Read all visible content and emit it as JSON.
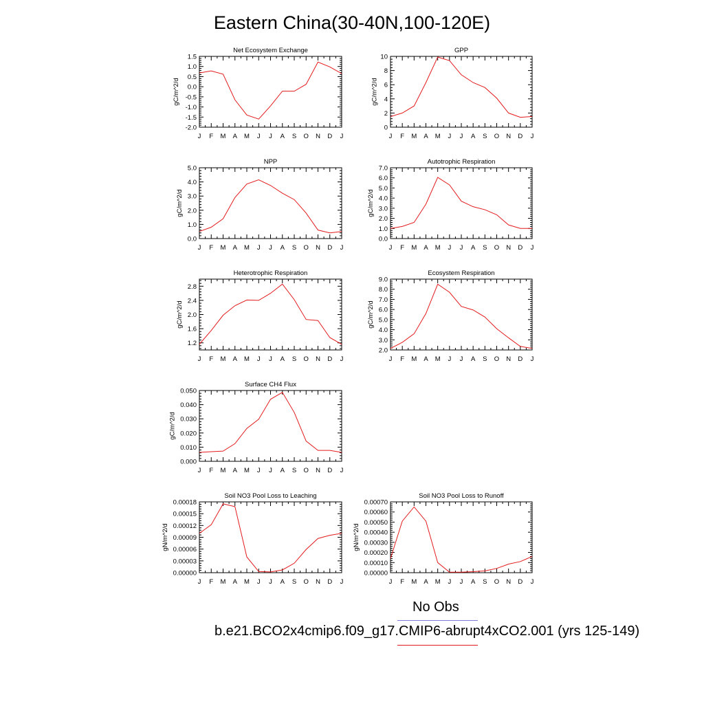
{
  "title": "Eastern China(30-40N,100-120E)",
  "month_labels": [
    "J",
    "F",
    "M",
    "A",
    "M",
    "J",
    "J",
    "A",
    "S",
    "O",
    "N",
    "D",
    "J"
  ],
  "colors": {
    "model": "#e41a1c",
    "obs": "#7b7bdb",
    "axis": "#000000"
  },
  "legend": {
    "obs_label": "No Obs",
    "model_label": "b.e21.BCO2x4cmip6.f09_g17.CMIP6-abrupt4xCO2.001 (yrs 125-149)"
  },
  "chart_data": [
    {
      "type": "line",
      "title": "Net Ecosystem Exchange",
      "ylabel": "gC/m^2/d",
      "ylim": [
        -2.0,
        1.5
      ],
      "yticks": [
        -2.0,
        -1.5,
        -1.0,
        -0.5,
        0.0,
        0.5,
        1.0,
        1.5
      ],
      "ytick_labels": [
        "-2.0",
        "-1.5",
        "-1.0",
        "-0.5",
        "0.0",
        "0.5",
        "1.0",
        "1.5"
      ],
      "values": [
        0.68,
        0.78,
        0.62,
        -0.65,
        -1.4,
        -1.6,
        -0.95,
        -0.22,
        -0.22,
        0.12,
        1.22,
        0.98,
        0.65
      ]
    },
    {
      "type": "line",
      "title": "GPP",
      "ylabel": "gC/m^2/d",
      "ylim": [
        0,
        10
      ],
      "yticks": [
        0,
        2,
        4,
        6,
        8,
        10
      ],
      "ytick_labels": [
        "0",
        "2",
        "4",
        "6",
        "8",
        "10"
      ],
      "values": [
        1.5,
        2.0,
        3.0,
        6.3,
        9.9,
        9.4,
        7.4,
        6.3,
        5.6,
        4.1,
        2.0,
        1.4,
        1.5
      ]
    },
    {
      "type": "line",
      "title": "NPP",
      "ylabel": "gC/m^2/d",
      "ylim": [
        0,
        5
      ],
      "yticks": [
        0,
        1,
        2,
        3,
        4,
        5
      ],
      "ytick_labels": [
        "0.0",
        "1.0",
        "2.0",
        "3.0",
        "4.0",
        "5.0"
      ],
      "values": [
        0.5,
        0.8,
        1.4,
        2.9,
        3.85,
        4.15,
        3.75,
        3.2,
        2.75,
        1.8,
        0.6,
        0.4,
        0.5
      ]
    },
    {
      "type": "line",
      "title": "Autotrophic Respiration",
      "ylabel": "gC/m^2/d",
      "ylim": [
        0,
        7
      ],
      "yticks": [
        0,
        1,
        2,
        3,
        4,
        5,
        6,
        7
      ],
      "ytick_labels": [
        "0.0",
        "1.0",
        "2.0",
        "3.0",
        "4.0",
        "5.0",
        "6.0",
        "7.0"
      ],
      "values": [
        1.0,
        1.2,
        1.6,
        3.4,
        6.05,
        5.3,
        3.7,
        3.15,
        2.85,
        2.35,
        1.35,
        1.0,
        1.0
      ]
    },
    {
      "type": "line",
      "title": "Heterotrophic Respiration",
      "ylabel": "gC/m^2/d",
      "ylim": [
        1.0,
        3.0
      ],
      "yticks": [
        1.2,
        1.6,
        2.0,
        2.4,
        2.8
      ],
      "ytick_labels": [
        "1.2",
        "1.6",
        "2.0",
        "2.4",
        "2.8"
      ],
      "values": [
        1.16,
        1.55,
        1.98,
        2.25,
        2.41,
        2.4,
        2.6,
        2.86,
        2.42,
        1.86,
        1.83,
        1.35,
        1.16
      ]
    },
    {
      "type": "line",
      "title": "Ecosystem Respiration",
      "ylabel": "gC/m^2/d",
      "ylim": [
        2.0,
        9.0
      ],
      "yticks": [
        2,
        3,
        4,
        5,
        6,
        7,
        8,
        9
      ],
      "ytick_labels": [
        "2.0",
        "3.0",
        "4.0",
        "5.0",
        "6.0",
        "7.0",
        "8.0",
        "9.0"
      ],
      "values": [
        2.15,
        2.75,
        3.6,
        5.6,
        8.5,
        7.7,
        6.3,
        5.95,
        5.25,
        4.1,
        3.2,
        2.35,
        2.15
      ]
    },
    {
      "type": "line",
      "title": "Surface CH4 Flux",
      "ylabel": "gC/m^2/d",
      "ylim": [
        0,
        0.05
      ],
      "yticks": [
        0,
        0.01,
        0.02,
        0.03,
        0.04,
        0.05
      ],
      "ytick_labels": [
        "0.000",
        "0.010",
        "0.020",
        "0.030",
        "0.040",
        "0.050"
      ],
      "values": [
        0.0063,
        0.0068,
        0.0072,
        0.0125,
        0.0232,
        0.0297,
        0.0438,
        0.0487,
        0.0345,
        0.0143,
        0.0077,
        0.0077,
        0.0063
      ]
    },
    {
      "type": "line",
      "title": "Soil NO3 Pool Loss to Leaching",
      "ylabel": "gN/m^2/d",
      "ylim": [
        0,
        0.00018
      ],
      "yticks": [
        0,
        3e-05,
        6e-05,
        9e-05,
        0.00012,
        0.00015,
        0.00018
      ],
      "ytick_labels": [
        "0.00000",
        "0.00003",
        "0.00006",
        "0.00009",
        "0.00012",
        "0.00015",
        "0.00018"
      ],
      "values": [
        0.0001,
        0.000122,
        0.000175,
        0.000168,
        4e-05,
        3e-06,
        2e-06,
        7e-06,
        2.4e-05,
        5.9e-05,
        8.7e-05,
        9.5e-05,
        0.0001
      ]
    },
    {
      "type": "line",
      "title": "Soil NO3 Pool Loss to Runoff",
      "ylabel": "gN/m^2/d",
      "ylim": [
        0,
        0.0007
      ],
      "yticks": [
        0,
        0.0001,
        0.0002,
        0.0003,
        0.0004,
        0.0005,
        0.0006,
        0.0007
      ],
      "ytick_labels": [
        "0.00000",
        "0.00010",
        "0.00020",
        "0.00030",
        "0.00040",
        "0.00050",
        "0.00060",
        "0.00070"
      ],
      "values": [
        0.00014,
        0.00051,
        0.00065,
        0.00051,
        0.0001,
        5e-06,
        5e-06,
        1e-05,
        1.8e-05,
        4.2e-05,
        8.5e-05,
        0.00011,
        0.00016
      ]
    }
  ]
}
